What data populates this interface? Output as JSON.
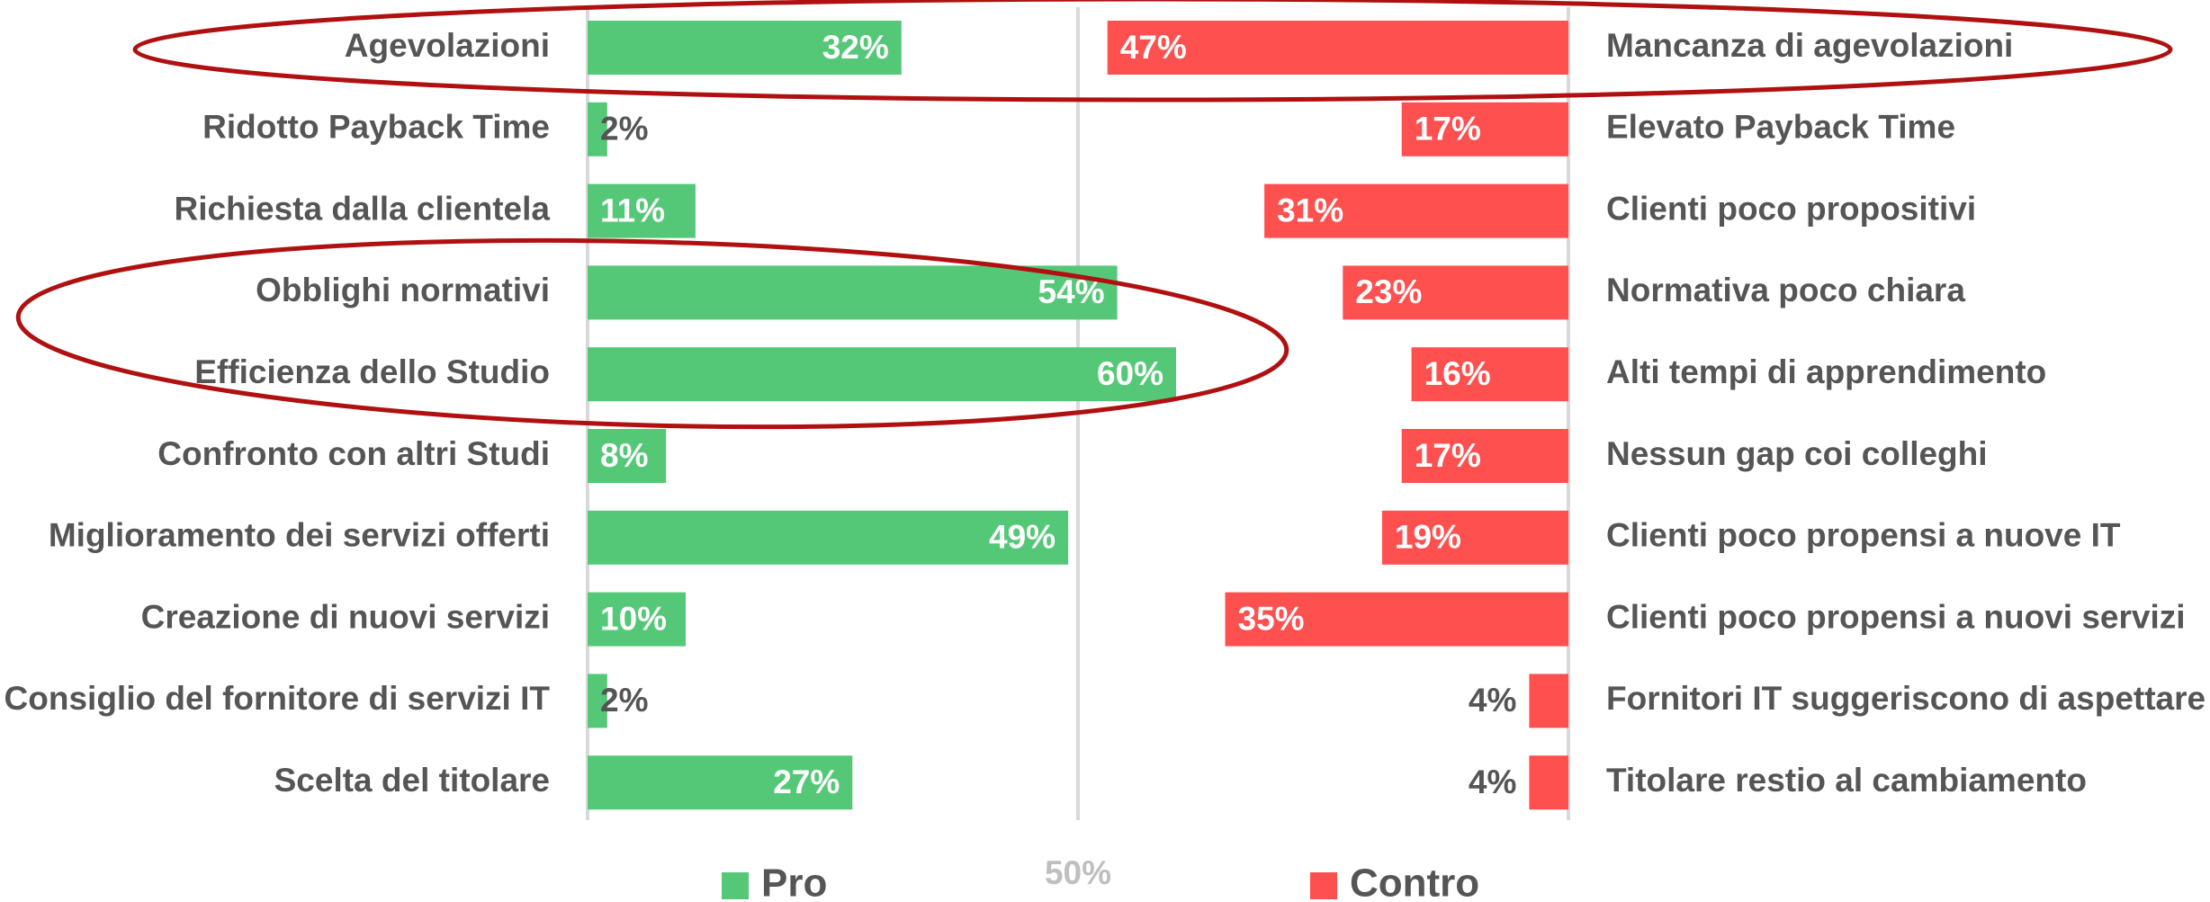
{
  "chart_data": {
    "type": "diverging-bar",
    "xlim": [
      0,
      100
    ],
    "xticks": [
      {
        "value": 50,
        "label": "50%"
      }
    ],
    "series": [
      {
        "name": "Pro",
        "color": "#55c878",
        "categories": [
          "Agevolazioni",
          "Ridotto Payback Time",
          "Richiesta dalla clientela",
          "Obblighi normativi",
          "Efficienza dello Studio",
          "Confronto con altri Studi",
          "Miglioramento dei servizi offerti",
          "Creazione di nuovi servizi",
          "Consiglio del fornitore di servizi IT",
          "Scelta del titolare"
        ],
        "values": [
          32,
          2,
          11,
          54,
          60,
          8,
          49,
          10,
          2,
          27
        ],
        "value_labels": [
          "32%",
          "2%",
          "11%",
          "54%",
          "60%",
          "8%",
          "49%",
          "10%",
          "2%",
          "27%"
        ]
      },
      {
        "name": "Contro",
        "color": "#ff5050",
        "categories": [
          "Mancanza di agevolazioni",
          "Elevato Payback Time",
          "Clienti poco propositivi",
          "Normativa poco chiara",
          "Alti tempi di apprendimento",
          "Nessun gap coi colleghi",
          "Clienti poco propensi a nuove IT",
          "Clienti poco propensi a nuovi servizi",
          "Fornitori IT suggeriscono di aspettare",
          "Titolare restio al cambiamento"
        ],
        "values": [
          47,
          17,
          31,
          23,
          16,
          17,
          19,
          35,
          4,
          4
        ],
        "value_labels": [
          "47%",
          "17%",
          "31%",
          "23%",
          "16%",
          "17%",
          "19%",
          "35%",
          "4%",
          "4%"
        ]
      }
    ]
  }
}
